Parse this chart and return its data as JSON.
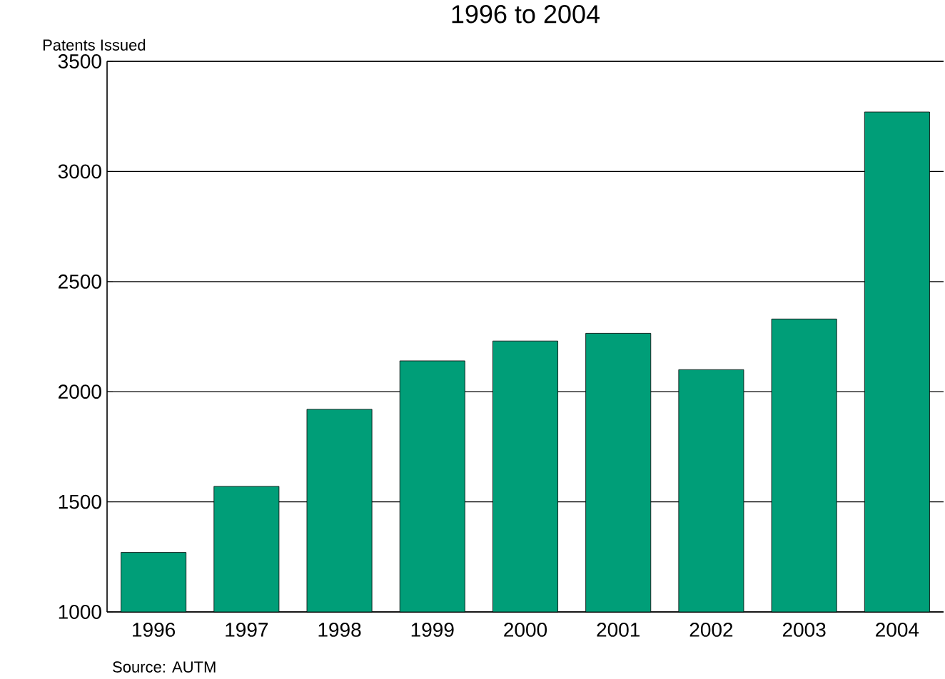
{
  "chart_data": {
    "type": "bar",
    "title": "1996 to 2004",
    "ylabel": "Patents Issued",
    "categories": [
      "1996",
      "1997",
      "1998",
      "1999",
      "2000",
      "2001",
      "2002",
      "2003",
      "2004"
    ],
    "values": [
      1270,
      1570,
      1920,
      2140,
      2230,
      2265,
      2100,
      2330,
      3270
    ],
    "color": "#009e78",
    "ylim": [
      1000,
      3500
    ],
    "yticks": [
      1000,
      1500,
      2000,
      2500,
      3000,
      3500
    ],
    "grid": "y",
    "annotations": [
      "Source: AUTM"
    ]
  }
}
